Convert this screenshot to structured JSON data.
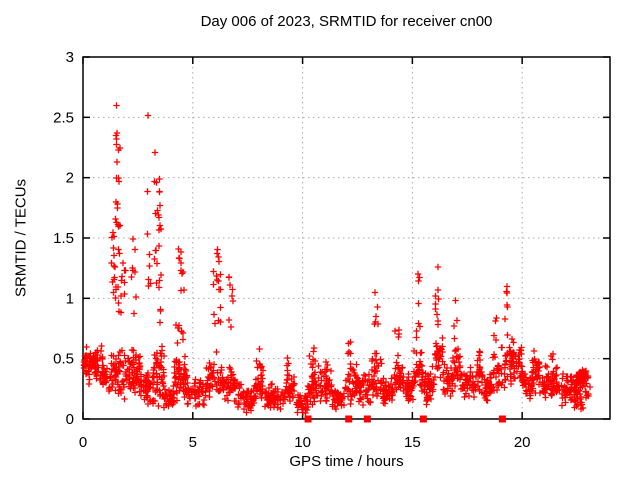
{
  "page": {
    "background": "#ffffff"
  },
  "chart_data": {
    "type": "scatter",
    "title": "Day 006 of 2023, SRMTID for receiver cn00",
    "xlabel": "GPS time / hours",
    "ylabel": "SRMTID / TECUs",
    "xlim": [
      0,
      24
    ],
    "ylim": [
      0,
      3
    ],
    "xticks": [
      0,
      5,
      10,
      15,
      20
    ],
    "xtick_labels": [
      "0",
      "5",
      "10",
      "15",
      "20"
    ],
    "yticks": [
      0,
      0.5,
      1,
      1.5,
      2,
      2.5,
      3
    ],
    "ytick_labels": [
      "0",
      "0.5",
      "1",
      "1.5",
      "2",
      "2.5",
      "3"
    ],
    "grid": true,
    "legend": "none",
    "colors": {
      "marker": "#ff0000",
      "grid": "#aaaaaa",
      "axis": "#000000"
    },
    "series": [
      {
        "name": "srmtid",
        "marker": "plus",
        "color": "#ff0000",
        "cluster_format": "[t_start_hours, t_end_hours, value_min_TECU, value_max_TECU, n_points]",
        "baseline_bands": [
          [
            0.02,
            0.9,
            0.28,
            0.62,
            85
          ],
          [
            0.9,
            1.25,
            0.2,
            0.45,
            25
          ],
          [
            1.25,
            2.1,
            0.15,
            0.62,
            65
          ],
          [
            2.1,
            2.6,
            0.15,
            0.6,
            55
          ],
          [
            2.6,
            3.2,
            0.08,
            0.45,
            45
          ],
          [
            3.2,
            3.7,
            0.1,
            0.62,
            50
          ],
          [
            3.7,
            4.15,
            0.08,
            0.3,
            35
          ],
          [
            4.15,
            4.75,
            0.15,
            0.55,
            60
          ],
          [
            4.75,
            5.6,
            0.08,
            0.35,
            50
          ],
          [
            5.6,
            6.45,
            0.15,
            0.5,
            50
          ],
          [
            6.45,
            7.05,
            0.1,
            0.45,
            40
          ],
          [
            7.05,
            7.85,
            0.05,
            0.3,
            55
          ],
          [
            7.85,
            8.2,
            0.1,
            0.5,
            30
          ],
          [
            8.2,
            9.2,
            0.05,
            0.3,
            65
          ],
          [
            9.2,
            9.65,
            0.1,
            0.42,
            30
          ],
          [
            9.65,
            10.25,
            0.04,
            0.22,
            35
          ],
          [
            10.25,
            10.8,
            0.1,
            0.5,
            40
          ],
          [
            10.8,
            11.35,
            0.1,
            0.42,
            40
          ],
          [
            11.35,
            11.95,
            0.06,
            0.25,
            40
          ],
          [
            11.95,
            12.5,
            0.1,
            0.5,
            40
          ],
          [
            12.5,
            13.15,
            0.08,
            0.4,
            45
          ],
          [
            13.15,
            13.6,
            0.15,
            0.55,
            35
          ],
          [
            13.6,
            14.1,
            0.1,
            0.35,
            40
          ],
          [
            14.1,
            14.6,
            0.15,
            0.5,
            35
          ],
          [
            14.6,
            15.05,
            0.1,
            0.4,
            35
          ],
          [
            15.05,
            15.5,
            0.2,
            0.6,
            35
          ],
          [
            15.5,
            16.0,
            0.1,
            0.5,
            40
          ],
          [
            16.0,
            16.4,
            0.25,
            0.7,
            30
          ],
          [
            16.4,
            16.85,
            0.15,
            0.5,
            35
          ],
          [
            16.85,
            17.2,
            0.25,
            0.6,
            25
          ],
          [
            17.2,
            17.85,
            0.15,
            0.45,
            45
          ],
          [
            17.85,
            18.2,
            0.18,
            0.55,
            22
          ],
          [
            18.2,
            18.65,
            0.15,
            0.4,
            35
          ],
          [
            18.65,
            19.05,
            0.2,
            0.55,
            26
          ],
          [
            19.05,
            19.5,
            0.2,
            0.65,
            30
          ],
          [
            19.5,
            20.0,
            0.25,
            0.7,
            40
          ],
          [
            20.0,
            20.45,
            0.15,
            0.45,
            35
          ],
          [
            20.45,
            20.8,
            0.2,
            0.55,
            30
          ],
          [
            20.8,
            21.6,
            0.15,
            0.45,
            55
          ],
          [
            21.6,
            22.35,
            0.1,
            0.4,
            50
          ],
          [
            22.35,
            22.8,
            0.05,
            0.35,
            40
          ],
          [
            22.45,
            23.0,
            0.27,
            0.42,
            55
          ],
          [
            22.85,
            23.1,
            0.12,
            0.3,
            8
          ]
        ],
        "spike_columns": [
          [
            1.3,
            1.5,
            1.0,
            1.55,
            12
          ],
          [
            1.45,
            1.7,
            1.95,
            2.42,
            10
          ],
          [
            1.52,
            1.6,
            2.55,
            2.6,
            1
          ],
          [
            1.45,
            1.7,
            1.55,
            1.8,
            8
          ],
          [
            1.4,
            1.75,
            0.85,
            1.5,
            10
          ],
          [
            1.75,
            1.95,
            0.95,
            1.35,
            7
          ],
          [
            2.15,
            2.45,
            0.85,
            1.5,
            8
          ],
          [
            2.9,
            3.0,
            2.48,
            2.53,
            1
          ],
          [
            2.88,
            2.95,
            1.85,
            1.92,
            1
          ],
          [
            2.9,
            3.1,
            1.1,
            1.55,
            6
          ],
          [
            3.22,
            3.32,
            2.18,
            2.24,
            1
          ],
          [
            3.25,
            3.5,
            1.8,
            2.02,
            5
          ],
          [
            3.25,
            3.55,
            1.5,
            1.8,
            8
          ],
          [
            3.2,
            3.6,
            0.8,
            1.5,
            12
          ],
          [
            4.2,
            4.6,
            0.9,
            1.45,
            10
          ],
          [
            4.2,
            4.6,
            0.6,
            0.9,
            8
          ],
          [
            5.9,
            6.3,
            1.15,
            1.45,
            8
          ],
          [
            5.95,
            6.3,
            0.55,
            1.15,
            10
          ],
          [
            6.6,
            6.85,
            0.75,
            1.25,
            8
          ],
          [
            7.9,
            8.15,
            0.4,
            0.62,
            6
          ],
          [
            9.25,
            9.45,
            0.35,
            0.55,
            5
          ],
          [
            10.3,
            10.6,
            0.4,
            0.65,
            6
          ],
          [
            11.0,
            11.2,
            0.35,
            0.5,
            4
          ],
          [
            12.05,
            12.25,
            0.45,
            0.75,
            6
          ],
          [
            13.25,
            13.45,
            0.5,
            1.05,
            8
          ],
          [
            14.2,
            14.4,
            0.45,
            0.75,
            5
          ],
          [
            15.15,
            15.35,
            0.65,
            1.25,
            8
          ],
          [
            16.0,
            16.2,
            0.75,
            1.28,
            9
          ],
          [
            16.85,
            17.05,
            0.55,
            1.02,
            6
          ],
          [
            17.95,
            18.1,
            0.45,
            0.75,
            4
          ],
          [
            18.7,
            18.9,
            0.5,
            0.85,
            5
          ],
          [
            19.15,
            19.35,
            0.6,
            1.13,
            7
          ],
          [
            20.45,
            20.6,
            0.4,
            0.6,
            4
          ],
          [
            21.3,
            21.5,
            0.4,
            0.55,
            3
          ]
        ]
      },
      {
        "name": "zero-flags",
        "marker": "filled-square",
        "color": "#ff0000",
        "y": 0,
        "x": [
          10.25,
          12.1,
          12.95,
          15.5,
          19.1
        ]
      }
    ]
  }
}
